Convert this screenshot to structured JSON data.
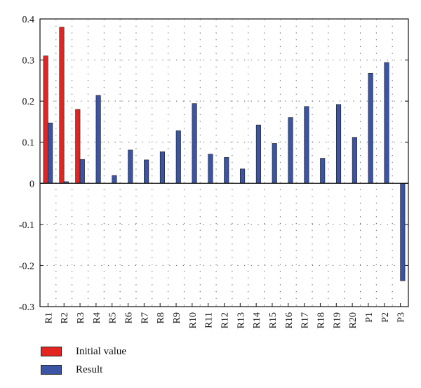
{
  "chart_data": {
    "type": "bar",
    "categories": [
      "R1",
      "R2",
      "R3",
      "R4",
      "R5",
      "R6",
      "R7",
      "R8",
      "R9",
      "R10",
      "R11",
      "R12",
      "R13",
      "R14",
      "R15",
      "R16",
      "R17",
      "R18",
      "R19",
      "R20",
      "P1",
      "P2",
      "P3"
    ],
    "series": [
      {
        "name": "Initial value",
        "color": "#e32521",
        "values": [
          0.31,
          0.38,
          0.18,
          null,
          null,
          null,
          null,
          null,
          null,
          null,
          null,
          null,
          null,
          null,
          null,
          null,
          null,
          null,
          null,
          null,
          null,
          null,
          null
        ]
      },
      {
        "name": "Result",
        "color": "#3b54a4",
        "values": [
          0.147,
          0.004,
          0.058,
          0.214,
          0.019,
          0.081,
          0.057,
          0.077,
          0.128,
          0.194,
          0.071,
          0.063,
          0.035,
          0.142,
          0.097,
          0.16,
          0.187,
          0.061,
          0.192,
          0.112,
          0.268,
          0.294,
          -0.237
        ]
      }
    ],
    "yticks": [
      "0.4",
      "0.3",
      "0.2",
      "0.1",
      "0",
      "-0.1",
      "-0.2",
      "-0.3"
    ],
    "ytick_values": [
      0.4,
      0.3,
      0.2,
      0.1,
      0,
      -0.1,
      -0.2,
      -0.3
    ],
    "ylim": [
      -0.3,
      0.4
    ],
    "grid": true,
    "legend_position": "bottom-left",
    "title": "",
    "xlabel": "",
    "ylabel": ""
  },
  "legend": {
    "items": [
      {
        "label": "Initial value",
        "color": "#e32521"
      },
      {
        "label": "Result",
        "color": "#3b54a4"
      }
    ]
  }
}
